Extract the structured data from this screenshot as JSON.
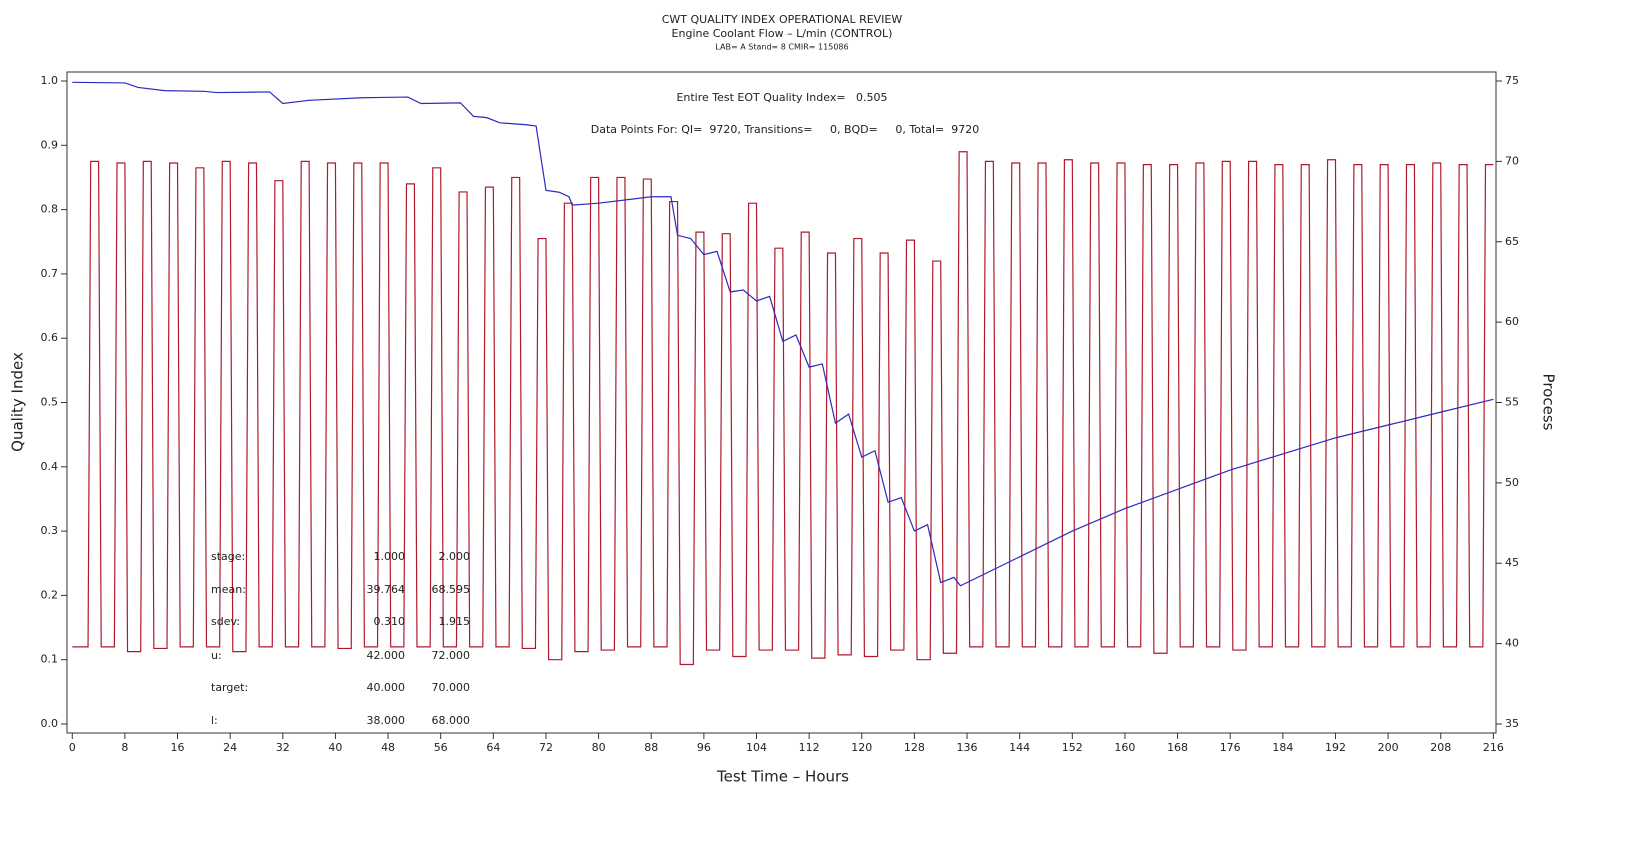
{
  "chart_data": {
    "type": "line",
    "title": "CWT QUALITY INDEX OPERATIONAL REVIEW",
    "subtitle": "Engine Coolant Flow – L/min (CONTROL)",
    "subtitle2": "LAB= A Stand= 8 CMIR= 115086",
    "annotations": [
      "Entire Test EOT Quality Index=   0.505",
      "Data Points For: QI=  9720, Transitions=     0, BQD=     0, Total=  9720"
    ],
    "xlabel": "Test Time – Hours",
    "ylabel": "Quality Index",
    "y2label": "Process",
    "xlim": [
      -0.8,
      216.4
    ],
    "xticks": [
      0,
      8,
      16,
      24,
      32,
      40,
      48,
      56,
      64,
      72,
      80,
      88,
      96,
      104,
      112,
      120,
      128,
      136,
      144,
      152,
      160,
      168,
      176,
      184,
      192,
      200,
      208,
      216
    ],
    "ylim": [
      -0.014,
      1.014
    ],
    "yticks": [
      {
        "value": 0,
        "label": "0.0"
      },
      0.1,
      0.2,
      0.3,
      0.4,
      0.5,
      0.6,
      0.7,
      0.8,
      0.9,
      {
        "value": 1,
        "label": "1.0"
      }
    ],
    "y2lim": [
      34.44,
      75.56
    ],
    "y2ticks": [
      35,
      40,
      45,
      50,
      55,
      60,
      65,
      70,
      75
    ],
    "grid": false,
    "series": [
      {
        "color": "#b0182c",
        "axis": "y2",
        "x": [
          0,
          2.4,
          2.8,
          4,
          4.4,
          6.4,
          6.8,
          8,
          8.4,
          10.4,
          10.8,
          12,
          12.4,
          14.4,
          14.8,
          16,
          16.4,
          18.4,
          18.8,
          20,
          20.4,
          22.4,
          22.8,
          24,
          24.4,
          26.4,
          26.8,
          28,
          28.4,
          30.4,
          30.8,
          32,
          32.4,
          34.4,
          34.8,
          36,
          36.4,
          38.4,
          38.8,
          40,
          40.4,
          42.4,
          42.8,
          44,
          44.4,
          46.4,
          46.8,
          48,
          48.4,
          50.4,
          50.8,
          52,
          52.4,
          54.4,
          54.8,
          56,
          56.4,
          58.4,
          58.8,
          60,
          60.4,
          62.4,
          62.8,
          64,
          64.4,
          66.4,
          66.8,
          68,
          68.4,
          70.4,
          70.8,
          72,
          72.4,
          74.4,
          74.8,
          76,
          76.4,
          78.4,
          78.8,
          80,
          80.4,
          82.4,
          82.8,
          84,
          84.4,
          86.4,
          86.8,
          88,
          88.4,
          90.4,
          90.8,
          92,
          92.4,
          94.4,
          94.8,
          96,
          96.4,
          98.4,
          98.8,
          100,
          100.4,
          102.4,
          102.8,
          104,
          104.4,
          106.4,
          106.8,
          108,
          108.4,
          110.4,
          110.8,
          112,
          112.4,
          114.4,
          114.8,
          116,
          116.4,
          118.4,
          118.8,
          120,
          120.4,
          122.4,
          122.8,
          124,
          124.4,
          126.4,
          126.8,
          128,
          128.4,
          130.4,
          130.8,
          132,
          132.4,
          134.4,
          134.8,
          136,
          136.4,
          138.4,
          138.8,
          140,
          140.4,
          142.4,
          142.8,
          144,
          144.4,
          146.4,
          146.8,
          148,
          148.4,
          150.4,
          150.8,
          152,
          152.4,
          154.4,
          154.8,
          156,
          156.4,
          158.4,
          158.8,
          160,
          160.4,
          162.4,
          162.8,
          164,
          164.4,
          166.4,
          166.8,
          168,
          168.4,
          170.4,
          170.8,
          172,
          172.4,
          174.4,
          174.8,
          176,
          176.4,
          178.4,
          178.8,
          180,
          180.4,
          182.4,
          182.8,
          184,
          184.4,
          186.4,
          186.8,
          188,
          188.4,
          190.4,
          190.8,
          192,
          192.4,
          194.4,
          194.8,
          196,
          196.4,
          198.4,
          198.8,
          200,
          200.4,
          202.4,
          202.8,
          204,
          204.4,
          206.4,
          206.8,
          208,
          208.4,
          210.4,
          210.8,
          212,
          212.4,
          214.4,
          214.8,
          216
        ],
        "values": [
          39.8,
          39.8,
          70.0,
          70.0,
          39.8,
          39.8,
          69.9,
          69.9,
          39.5,
          39.5,
          70.0,
          70.0,
          39.7,
          39.7,
          69.9,
          69.9,
          39.8,
          39.8,
          69.6,
          69.6,
          39.8,
          39.8,
          70.0,
          70.0,
          39.5,
          39.5,
          69.9,
          69.9,
          39.8,
          39.8,
          68.8,
          68.8,
          39.8,
          39.8,
          70.0,
          70.0,
          39.8,
          39.8,
          69.9,
          69.9,
          39.7,
          39.7,
          69.9,
          69.9,
          39.8,
          39.8,
          69.9,
          69.9,
          39.8,
          39.8,
          68.6,
          68.6,
          39.8,
          39.8,
          69.6,
          69.6,
          39.8,
          39.8,
          68.1,
          68.1,
          39.8,
          39.8,
          68.4,
          68.4,
          39.8,
          39.8,
          69.0,
          69.0,
          39.7,
          39.7,
          65.2,
          65.2,
          39.0,
          39.0,
          67.4,
          67.4,
          39.5,
          39.5,
          69.0,
          69.0,
          39.6,
          39.6,
          69.0,
          69.0,
          39.8,
          39.8,
          68.9,
          68.9,
          39.8,
          39.8,
          67.5,
          67.5,
          38.7,
          38.7,
          65.6,
          65.6,
          39.6,
          39.6,
          65.5,
          65.5,
          39.2,
          39.2,
          67.4,
          67.4,
          39.6,
          39.6,
          64.6,
          64.6,
          39.6,
          39.6,
          65.6,
          65.6,
          39.1,
          39.1,
          64.3,
          64.3,
          39.3,
          39.3,
          65.2,
          65.2,
          39.2,
          39.2,
          64.3,
          64.3,
          39.6,
          39.6,
          65.1,
          65.1,
          39.0,
          39.0,
          63.8,
          63.8,
          39.4,
          39.4,
          70.6,
          70.6,
          39.8,
          39.8,
          70.0,
          70.0,
          39.8,
          39.8,
          69.9,
          69.9,
          39.8,
          39.8,
          69.9,
          69.9,
          39.8,
          39.8,
          70.1,
          70.1,
          39.8,
          39.8,
          69.9,
          69.9,
          39.8,
          39.8,
          69.9,
          69.9,
          39.8,
          39.8,
          69.8,
          69.8,
          39.4,
          39.4,
          69.8,
          69.8,
          39.8,
          39.8,
          69.9,
          69.9,
          39.8,
          39.8,
          70.0,
          70.0,
          39.6,
          39.6,
          70.0,
          70.0,
          39.8,
          39.8,
          69.8,
          69.8,
          39.8,
          39.8,
          69.8,
          69.8,
          39.8,
          39.8,
          70.1,
          70.1,
          39.8,
          39.8,
          69.8,
          69.8,
          39.8,
          39.8,
          69.8,
          69.8,
          39.8,
          39.8,
          69.8,
          69.8,
          39.8,
          39.8,
          69.9,
          69.9,
          39.8,
          39.8,
          69.8,
          69.8,
          39.8,
          39.8,
          69.8,
          69.8
        ]
      },
      {
        "color": "#2b2bbf",
        "axis": "y",
        "x": [
          0,
          8,
          10,
          14,
          20,
          22,
          30,
          32,
          36,
          44,
          51,
          53,
          59,
          61,
          63,
          65,
          69,
          70.5,
          72,
          74,
          75.5,
          76,
          80,
          88,
          91,
          92,
          94,
          96,
          98,
          100,
          102,
          104,
          106,
          108,
          110,
          112,
          114,
          116,
          118,
          120,
          122,
          124,
          126,
          128,
          130,
          132,
          134,
          135,
          144,
          152,
          160,
          168,
          176,
          184,
          192,
          200,
          208,
          216
        ],
        "values": [
          0.998,
          0.997,
          0.99,
          0.985,
          0.984,
          0.982,
          0.983,
          0.965,
          0.97,
          0.974,
          0.975,
          0.965,
          0.966,
          0.945,
          0.943,
          0.935,
          0.932,
          0.93,
          0.83,
          0.827,
          0.82,
          0.807,
          0.81,
          0.82,
          0.82,
          0.76,
          0.755,
          0.73,
          0.735,
          0.672,
          0.675,
          0.658,
          0.665,
          0.595,
          0.605,
          0.555,
          0.56,
          0.468,
          0.482,
          0.415,
          0.425,
          0.345,
          0.352,
          0.3,
          0.31,
          0.22,
          0.228,
          0.215,
          0.26,
          0.3,
          0.335,
          0.365,
          0.395,
          0.42,
          0.445,
          0.465,
          0.485,
          0.505
        ]
      }
    ],
    "stats": [
      [
        "stage:",
        "1.000",
        "2.000"
      ],
      [
        "mean:",
        "39.764",
        "68.595"
      ],
      [
        "sdev:",
        "0.310",
        "1.915"
      ],
      [
        "u:",
        "42.000",
        "72.000"
      ],
      [
        "target:",
        "40.000",
        "70.000"
      ],
      [
        "l:",
        "38.000",
        "68.000"
      ]
    ]
  }
}
